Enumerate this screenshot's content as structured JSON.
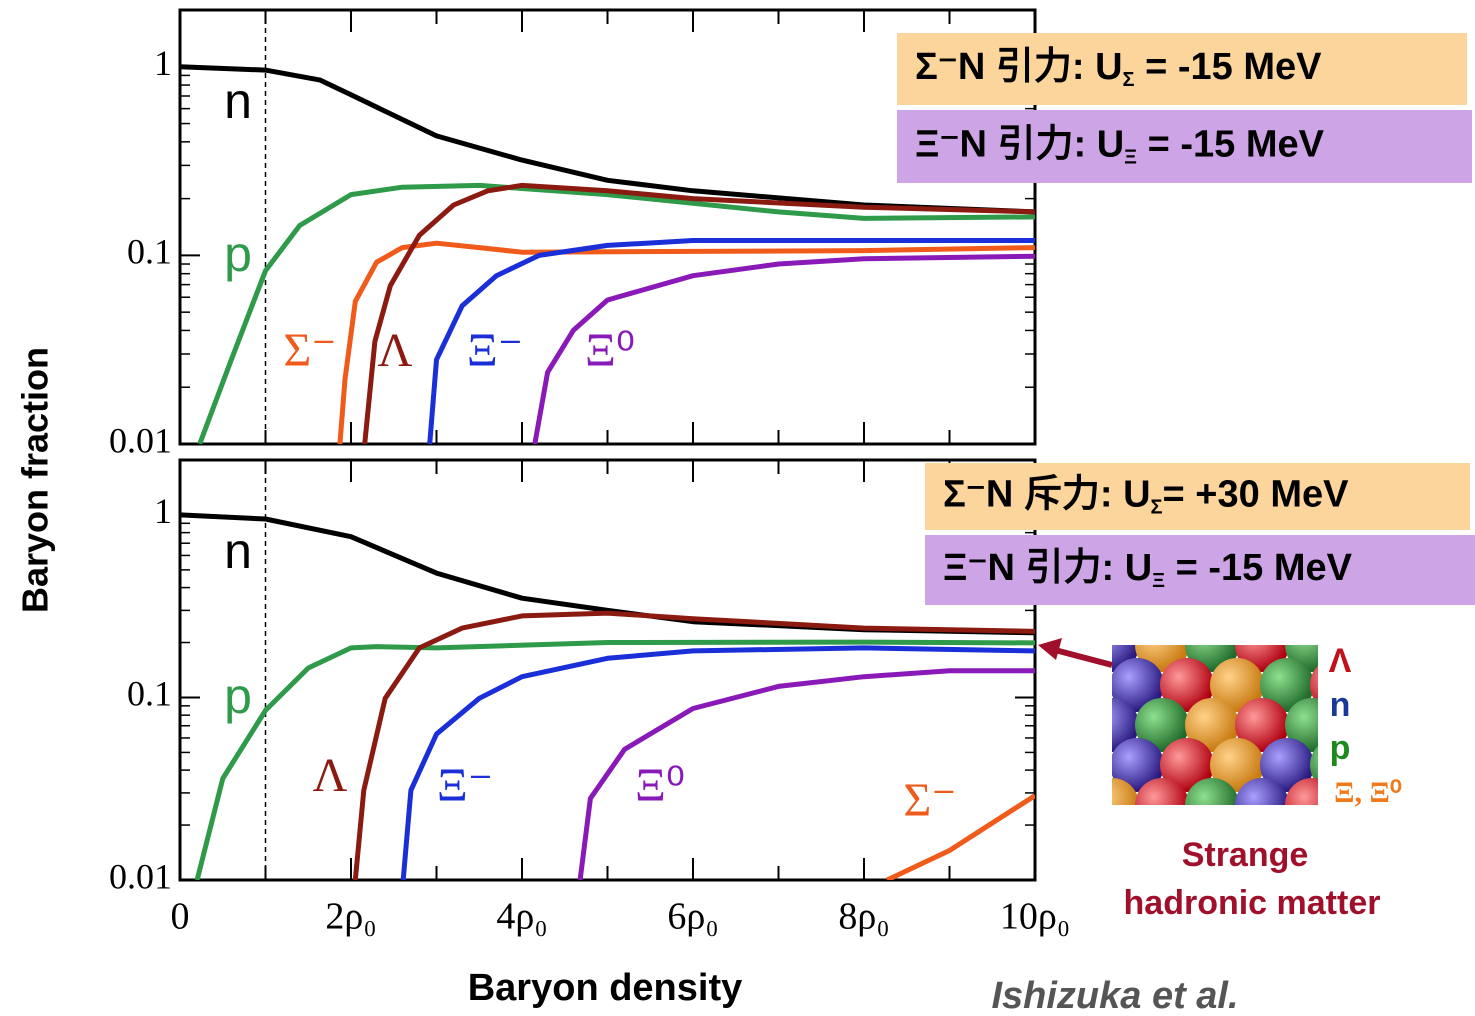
{
  "chart_data": [
    {
      "type": "line",
      "ylog": true,
      "xlim": [
        0,
        10
      ],
      "ylim": [
        0.01,
        2
      ],
      "yticks": [
        0.01,
        0.1,
        1
      ],
      "xticks": [
        0,
        2,
        4,
        6,
        8,
        10
      ],
      "reference_x": 1,
      "annotations": [
        {
          "text": "Σ⁻N 引力: U",
          "sub": "Σ",
          "tail": " = -15 MeV",
          "color": "#fcd59c"
        },
        {
          "text": "Ξ⁻N 引力: U",
          "sub": "Ξ",
          "tail": " = -15 MeV",
          "color": "#cda4e6"
        }
      ],
      "series": [
        {
          "name": "n",
          "color": "#000000",
          "x": [
            0,
            1,
            1.64,
            2,
            3,
            4,
            5,
            6,
            8,
            10
          ],
          "values": [
            1.0,
            0.96,
            0.85,
            0.71,
            0.43,
            0.32,
            0.25,
            0.22,
            0.185,
            0.17
          ]
        },
        {
          "name": "p",
          "color": "#2e9a4a",
          "x": [
            0.23,
            0.6,
            1,
            1.4,
            2,
            2.6,
            3.5,
            5,
            7,
            8,
            10
          ],
          "values": [
            0.01,
            0.028,
            0.083,
            0.144,
            0.21,
            0.23,
            0.235,
            0.21,
            0.17,
            0.157,
            0.16
          ]
        },
        {
          "name": "Σ⁻",
          "color": "#f05a1a",
          "x": [
            1.87,
            1.93,
            2.05,
            2.3,
            2.6,
            3,
            3.5,
            4,
            6,
            8,
            10
          ],
          "values": [
            0.01,
            0.022,
            0.057,
            0.092,
            0.11,
            0.116,
            0.11,
            0.104,
            0.105,
            0.106,
            0.11
          ]
        },
        {
          "name": "Λ",
          "color": "#8b1a10",
          "x": [
            2.16,
            2.28,
            2.46,
            2.8,
            3.2,
            3.6,
            4,
            5,
            6,
            8,
            10
          ],
          "values": [
            0.01,
            0.035,
            0.069,
            0.128,
            0.185,
            0.22,
            0.235,
            0.22,
            0.2,
            0.18,
            0.17
          ]
        },
        {
          "name": "Ξ⁻",
          "color": "#1a2fd8",
          "x": [
            2.92,
            3,
            3.3,
            3.7,
            4.2,
            5,
            6,
            8,
            10
          ],
          "values": [
            0.01,
            0.028,
            0.054,
            0.078,
            0.1,
            0.113,
            0.12,
            0.12,
            0.12
          ]
        },
        {
          "name": "Ξ⁰",
          "color": "#8a1ab8",
          "x": [
            4.15,
            4.3,
            4.6,
            5,
            6,
            7,
            8,
            10
          ],
          "values": [
            0.01,
            0.024,
            0.04,
            0.058,
            0.078,
            0.09,
            0.096,
            0.099
          ]
        }
      ]
    },
    {
      "type": "line",
      "ylog": true,
      "xlim": [
        0,
        10
      ],
      "ylim": [
        0.01,
        2
      ],
      "yticks": [
        0.01,
        0.1,
        1
      ],
      "xticks": [
        {
          "value": 0,
          "label": "0"
        },
        {
          "value": 2,
          "label": "2ρ₀"
        },
        {
          "value": 4,
          "label": "4ρ₀"
        },
        {
          "value": 6,
          "label": "6ρ₀"
        },
        {
          "value": 8,
          "label": "8ρ₀"
        },
        {
          "value": 10,
          "label": "10ρ₀"
        }
      ],
      "reference_x": 1,
      "annotations": [
        {
          "text": "Σ⁻N 斥力: U",
          "sub": "Σ",
          "tail": "= +30 MeV",
          "color": "#fcd59c"
        },
        {
          "text": "Ξ⁻N 引力: U",
          "sub": "Ξ",
          "tail": " = -15 MeV",
          "color": "#cda4e6"
        }
      ],
      "series": [
        {
          "name": "n",
          "color": "#000000",
          "x": [
            0,
            1,
            2,
            3,
            4,
            5,
            6,
            8,
            10
          ],
          "values": [
            1.0,
            0.95,
            0.76,
            0.48,
            0.35,
            0.3,
            0.26,
            0.235,
            0.226
          ]
        },
        {
          "name": "p",
          "color": "#2e9a4a",
          "x": [
            0.2,
            0.5,
            1,
            1.5,
            2,
            2.3,
            3,
            5,
            8,
            10
          ],
          "values": [
            0.01,
            0.036,
            0.085,
            0.145,
            0.187,
            0.19,
            0.187,
            0.2,
            0.201,
            0.199
          ]
        },
        {
          "name": "Λ",
          "color": "#8b1a10",
          "x": [
            2.05,
            2.15,
            2.4,
            2.8,
            3.3,
            4,
            5,
            6,
            8,
            10
          ],
          "values": [
            0.01,
            0.031,
            0.099,
            0.187,
            0.24,
            0.28,
            0.29,
            0.27,
            0.24,
            0.23
          ]
        },
        {
          "name": "Ξ⁻",
          "color": "#1a2fd8",
          "x": [
            2.61,
            2.7,
            3,
            3.5,
            4,
            5,
            6,
            8,
            10
          ],
          "values": [
            0.01,
            0.031,
            0.063,
            0.099,
            0.13,
            0.164,
            0.18,
            0.187,
            0.18
          ]
        },
        {
          "name": "Ξ⁰",
          "color": "#8a1ab8",
          "x": [
            4.68,
            4.8,
            5.2,
            6,
            7,
            8,
            9,
            10
          ],
          "values": [
            0.01,
            0.028,
            0.052,
            0.087,
            0.115,
            0.13,
            0.14,
            0.14
          ]
        },
        {
          "name": "Σ⁻",
          "color": "#f05a1a",
          "x": [
            8.27,
            9,
            10
          ],
          "values": [
            0.01,
            0.0145,
            0.029
          ]
        }
      ]
    }
  ],
  "y_label": "Baryon fraction",
  "x_label": "Baryon density",
  "credit": "Ishizuka et al.",
  "inset": {
    "labels": [
      {
        "text": "Λ",
        "color": "#c0101a"
      },
      {
        "text": "n",
        "color": "#1a3a9a"
      },
      {
        "text": "p",
        "color": "#1e8a1e"
      },
      {
        "text": "Ξ, Ξ⁰",
        "color": "#f07a1a"
      }
    ],
    "caption": [
      "Strange",
      "hadronic matter"
    ]
  }
}
